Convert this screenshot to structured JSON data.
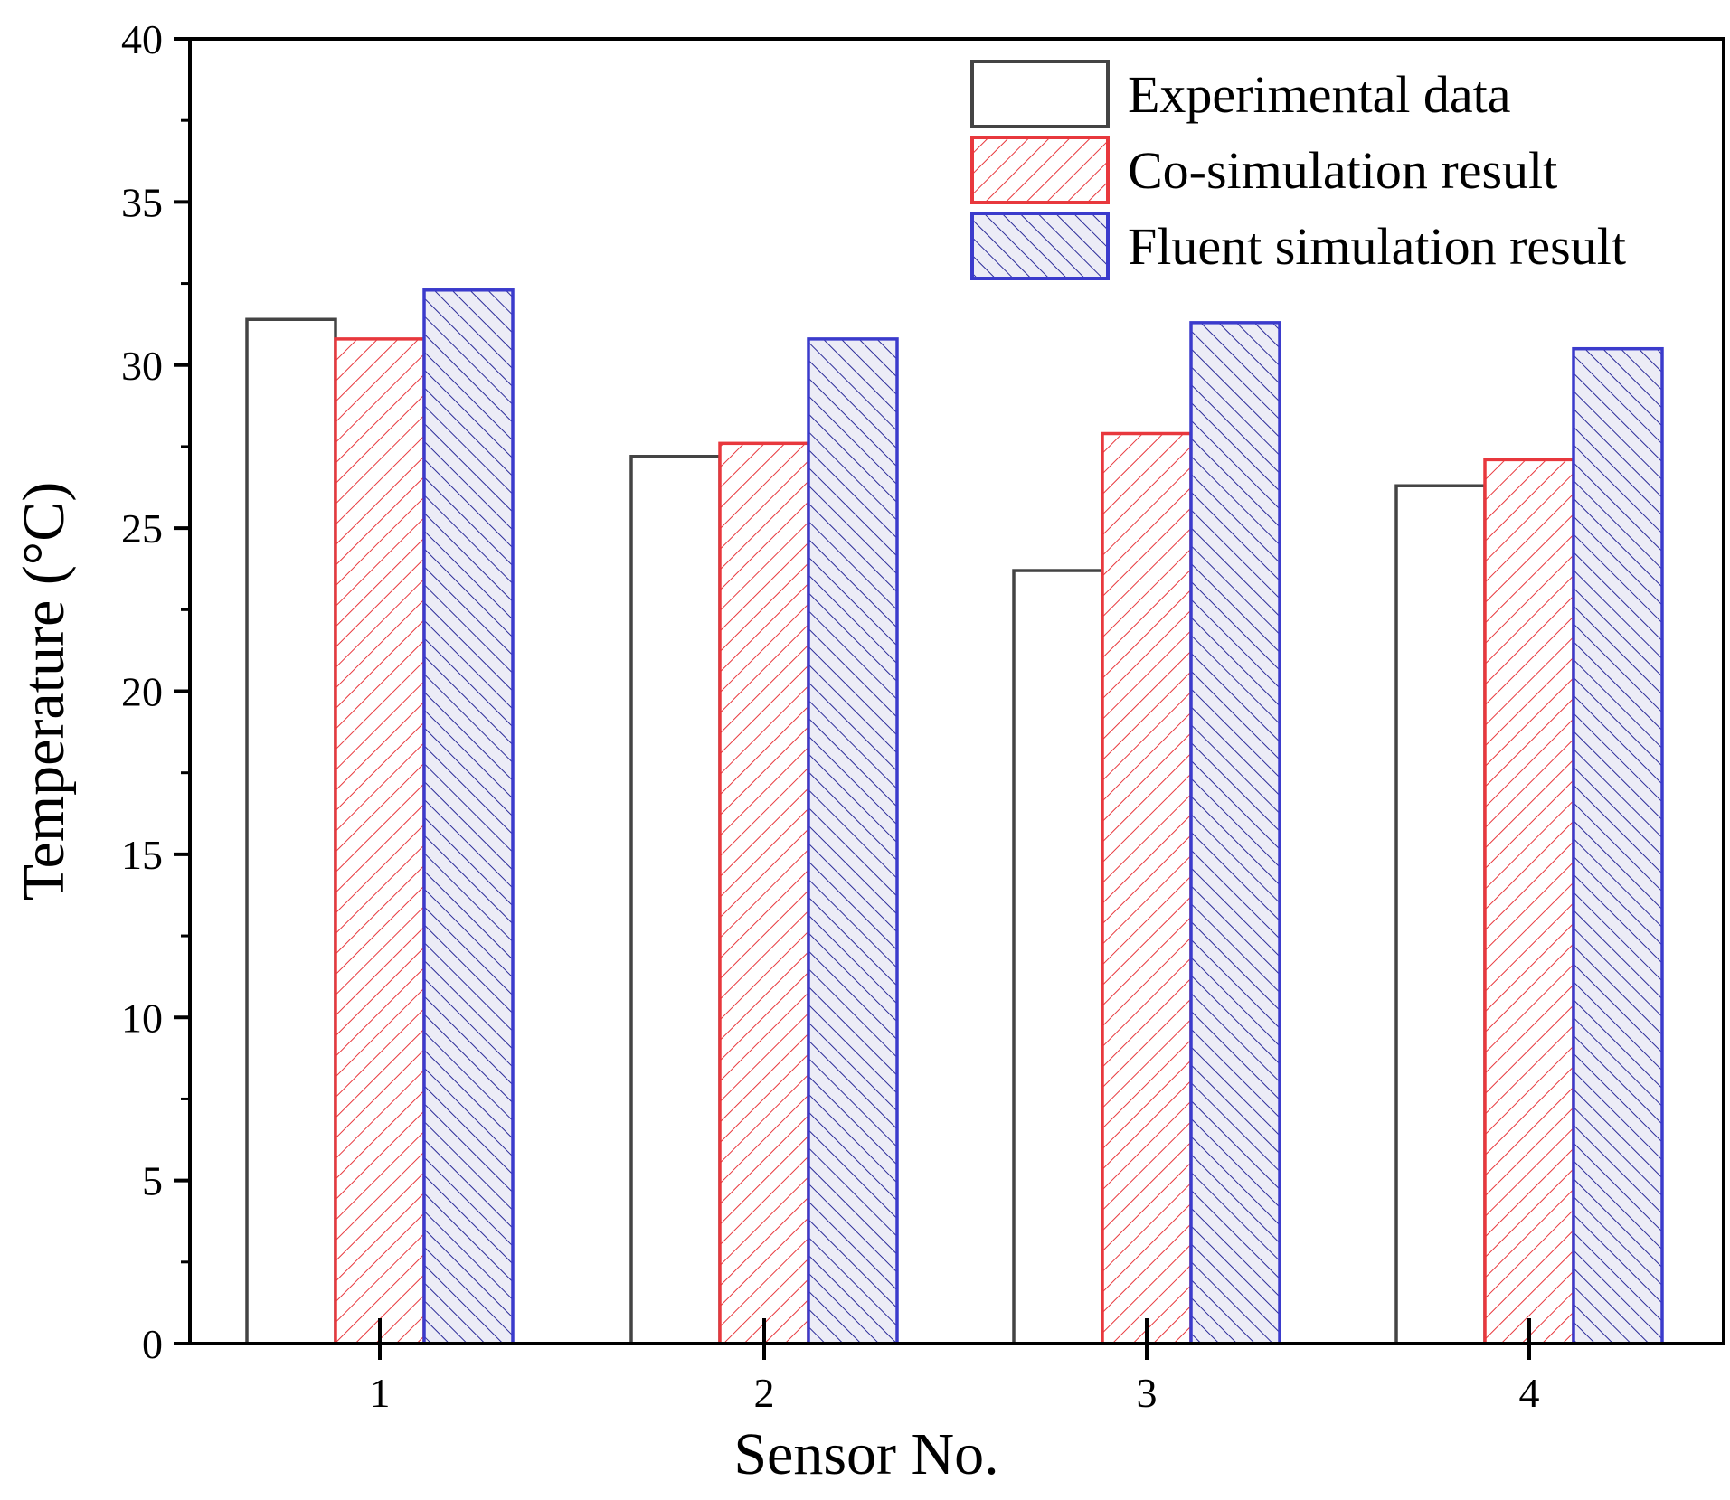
{
  "chart_data": {
    "type": "bar",
    "title": "",
    "xlabel": "Sensor No.",
    "ylabel": "Temperature (°C)",
    "categories": [
      "1",
      "2",
      "3",
      "4"
    ],
    "ylim": [
      0,
      40
    ],
    "yticks": [
      "0",
      "5",
      "10",
      "15",
      "20",
      "25",
      "30",
      "35",
      "40"
    ],
    "legend_position": "top-right",
    "series": [
      {
        "name": "Experimental data",
        "values": [
          31.4,
          27.2,
          23.7,
          26.3
        ],
        "color": "#444444",
        "hatch": "none"
      },
      {
        "name": "Co-simulation result",
        "values": [
          30.8,
          27.6,
          27.9,
          27.1
        ],
        "color": "#e8383d",
        "hatch": "forward"
      },
      {
        "name": "Fluent simulation result",
        "values": [
          32.3,
          30.8,
          31.3,
          30.5
        ],
        "color": "#3b3bcc",
        "hatch": "backward"
      }
    ]
  }
}
